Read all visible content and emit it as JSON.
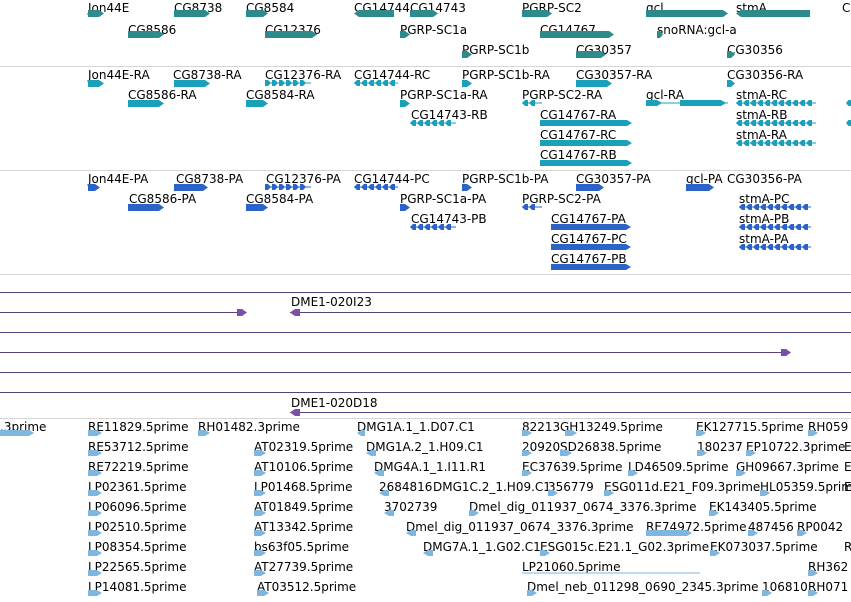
{
  "colors": {
    "gene": "#2e8b8b",
    "transcript": "#1aa0b8",
    "protein": "#2c63c9",
    "clone": "#7b4fa8",
    "est": "#7fb6e0",
    "divider": "#d6d6d6",
    "clone_line": "#55447a"
  },
  "tracks": {
    "gene": {
      "labels": [
        "Jon44E",
        "CG8738",
        "CG8584",
        "CG14744",
        "CG14743",
        "PGRP-SC2",
        "gcl",
        "stmA",
        "C",
        "CG8586",
        "CG12376",
        "PGRP-SC1a",
        "CG14767",
        "snoRNA:gcl-a",
        "PGRP-SC1b",
        "CG30357",
        "CG30356"
      ]
    },
    "transcript": {
      "labels": [
        "Jon44E-RA",
        "CG8738-RA",
        "CG12376-RA",
        "CG14744-RC",
        "PGRP-SC1b-RA",
        "CG30357-RA",
        "CG30356-RA",
        "CG8586-RA",
        "CG8584-RA",
        "PGRP-SC1a-RA",
        "PGRP-SC2-RA",
        "gcl-RA",
        "stmA-RC",
        "CG14743-RB",
        "CG14767-RA",
        "stmA-RB",
        "stmA-RA",
        "CG14767-RC",
        "CG14767-RB"
      ]
    },
    "protein": {
      "labels": [
        "Jon44E-PA",
        "CG8738-PA",
        "CG12376-PA",
        "CG14744-PC",
        "PGRP-SC1b-PA",
        "CG30357-PA",
        "gcl-PA",
        "CG30356-PA",
        "CG8586-PA",
        "CG8584-PA",
        "PGRP-SC1a-PA",
        "PGRP-SC2-PA",
        "stmA-PC",
        "CG14743-PB",
        "CG14767-PA",
        "stmA-PB",
        "CG14767-PC",
        "stmA-PA",
        "CG14767-PB"
      ]
    },
    "clone": {
      "labels": [
        "DME1-020I23",
        "DME1-020D18"
      ]
    },
    "est": {
      "labels": [
        ".3prime",
        "RE11829.5prime",
        "RH01482.3prime",
        "DMG1A.1_1.D07.C1",
        "82213",
        "GH13249.5prime",
        "EK127715.5prime",
        "RH059",
        "RE53712.5prime",
        "AT02319.5prime",
        "DMG1A.2_1.H09.C1",
        "20920",
        "SD26838.5prime",
        "180237",
        "EP10722.3prime",
        "E",
        "RE72219.5prime",
        "AT10106.5prime",
        "DMG4A.1_1.I11.R1",
        "EC37639.5prime",
        "LD46509.5prime",
        "GH09667.3prime",
        "E",
        "LP02361.5prime",
        "LP01468.5prime",
        "2684816",
        "DMG1C.2_1.H09.C1",
        "356779",
        "ESG011d.E21_F09.3prime",
        "HL05359.5prime",
        "E",
        "LP06096.5prime",
        "AT01849.5prime",
        "3702739",
        "Dmel_dig_011937_0674_3376.3prime",
        "EK143405.5prime",
        "LP02510.5prime",
        "AT13342.5prime",
        "Dmel_dig_011937_0674_3376.3prime",
        "RE74972.5prime",
        "487456",
        "RP0042",
        "LP08354.5prime",
        "bs63f05.5prime",
        "DMG7A.1_1.G02.C1",
        "ESG015c.E21.1_G02.3prime",
        "EK073037.5prime",
        "R",
        "LP22565.5prime",
        "AT27739.5prime",
        "LP21060.5prime",
        "RH362",
        "LP14081.5prime",
        "AT03512.5prime",
        "Dmel_neb_011298_0690_2345.3prime",
        "106810",
        "RH071"
      ]
    }
  }
}
